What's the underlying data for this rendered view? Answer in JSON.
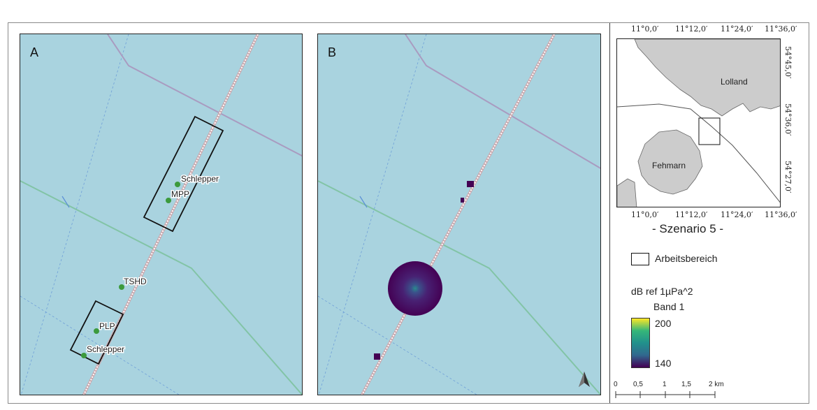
{
  "panels": {
    "a_label": "A",
    "b_label": "B",
    "a_labels": {
      "schlepper_top": "Schlepper",
      "mpp": "MPP",
      "tshd": "TSHD",
      "plp": "PLP",
      "schlepper_bottom": "Schlepper"
    }
  },
  "inset": {
    "top_ticks": [
      "11°0,0′",
      "11°12,0′",
      "11°24,0′",
      "11°36,0′"
    ],
    "bottom_ticks": [
      "11°0,0′",
      "11°12,0′",
      "11°24,0′",
      "11°36,0′"
    ],
    "right_ticks": [
      "54°45,0′",
      "54°36,0′",
      "54°27,0′"
    ],
    "lolland": "Lolland",
    "fehmarn": "Fehmarn"
  },
  "scenario_title": "- Szenario 5 -",
  "legend": {
    "work_area": "Arbeitsbereich",
    "unit": "dB ref 1µPa^2",
    "band": "Band 1",
    "max": "200",
    "min": "140"
  },
  "scalebar": {
    "ticks": [
      "0",
      "0,5",
      "1",
      "1,5",
      "2 km"
    ]
  },
  "colors": {
    "water": "#a9d3df",
    "land": "#cccccc",
    "route_dashed": "#f4d6d8",
    "purple_line": "#a99bc0",
    "green_line": "#82c4a6",
    "vessel_marker": "#3c9a3c",
    "noise_low": "#440154",
    "noise_high": "#fde725"
  },
  "north_arrow_icon": "north-arrow-icon"
}
